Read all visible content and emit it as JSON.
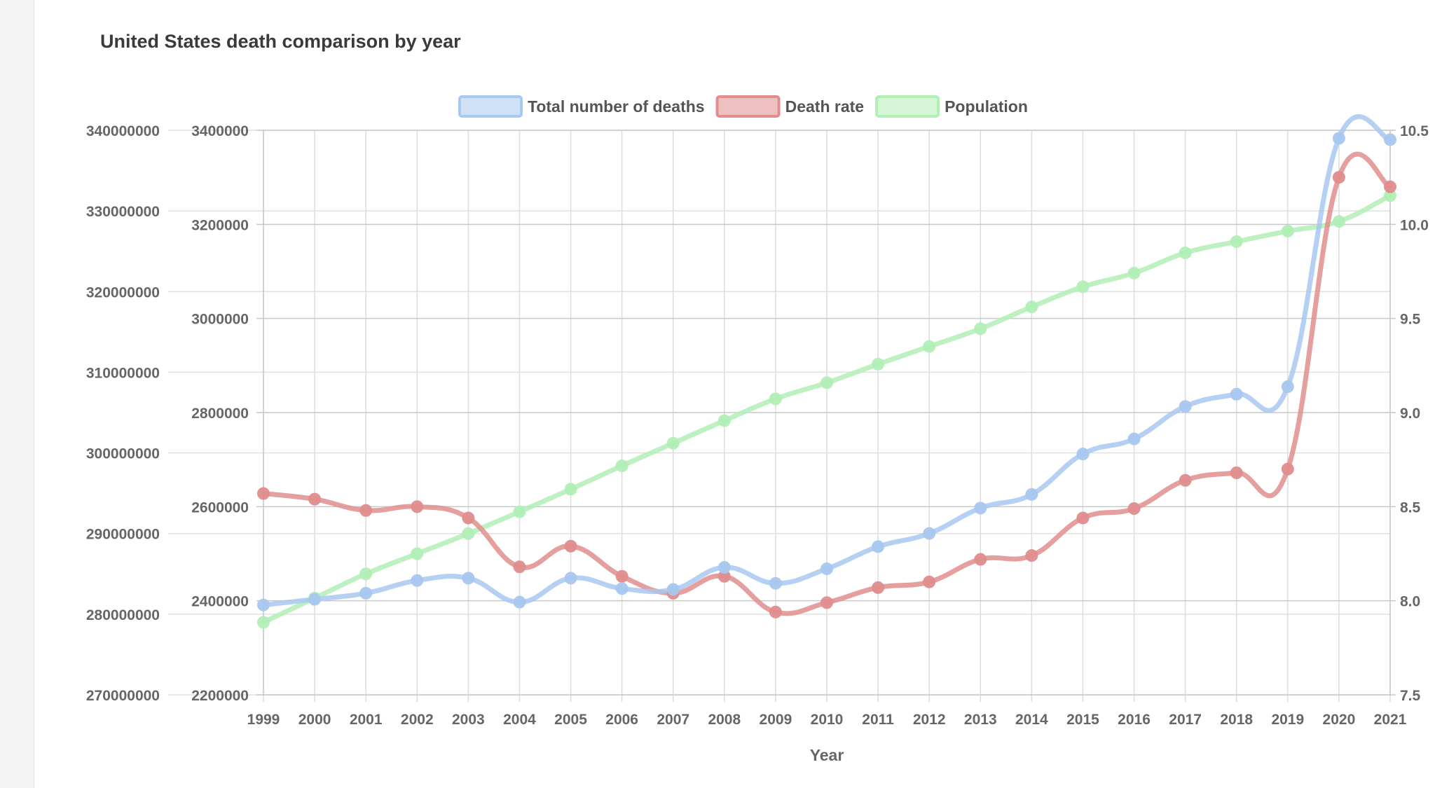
{
  "chart_data": {
    "type": "line",
    "title": "United States death comparison by year",
    "xlabel": "Year",
    "categories": [
      "1999",
      "2000",
      "2001",
      "2002",
      "2003",
      "2004",
      "2005",
      "2006",
      "2007",
      "2008",
      "2009",
      "2010",
      "2011",
      "2012",
      "2013",
      "2014",
      "2015",
      "2016",
      "2017",
      "2018",
      "2019",
      "2020",
      "2021"
    ],
    "legend_position": "top-center",
    "grid": true,
    "series": [
      {
        "name": "Total number of deaths",
        "axis": "y_mid",
        "color": "#a8c8f0",
        "values": [
          2391000,
          2403000,
          2416000,
          2443000,
          2448000,
          2397000,
          2448000,
          2426000,
          2424000,
          2471000,
          2437000,
          2468000,
          2515000,
          2543000,
          2597000,
          2626000,
          2712000,
          2744000,
          2813000,
          2839000,
          2855000,
          3383000,
          3380000
        ]
      },
      {
        "name": "Death rate",
        "axis": "y_right",
        "color": "#e08e8e",
        "values": [
          8.57,
          8.54,
          8.48,
          8.5,
          8.44,
          8.18,
          8.29,
          8.13,
          8.04,
          8.13,
          7.94,
          7.99,
          8.07,
          8.1,
          8.22,
          8.24,
          8.44,
          8.49,
          8.64,
          8.68,
          8.7,
          10.25,
          10.2
        ]
      },
      {
        "name": "Population",
        "axis": "y_left",
        "color": "#b2efb7",
        "values": [
          279000000,
          282000000,
          285000000,
          287500000,
          290000000,
          292700000,
          295500000,
          298400000,
          301200000,
          304000000,
          306700000,
          308700000,
          311000000,
          313200000,
          315400000,
          318100000,
          320600000,
          322300000,
          324800000,
          326200000,
          327500000,
          328700000,
          331900000
        ]
      }
    ],
    "axes": {
      "y_left": {
        "min": 270000000,
        "max": 340000000,
        "ticks": [
          "270000000",
          "280000000",
          "290000000",
          "300000000",
          "310000000",
          "320000000",
          "330000000",
          "340000000"
        ]
      },
      "y_mid": {
        "min": 2200000,
        "max": 3400000,
        "ticks": [
          "2200000",
          "2400000",
          "2600000",
          "2800000",
          "3000000",
          "3200000",
          "3400000"
        ]
      },
      "y_right": {
        "min": 7.5,
        "max": 10.5,
        "ticks": [
          "7.5",
          "8.0",
          "8.5",
          "9.0",
          "9.5",
          "10.0",
          "10.5"
        ]
      }
    }
  }
}
